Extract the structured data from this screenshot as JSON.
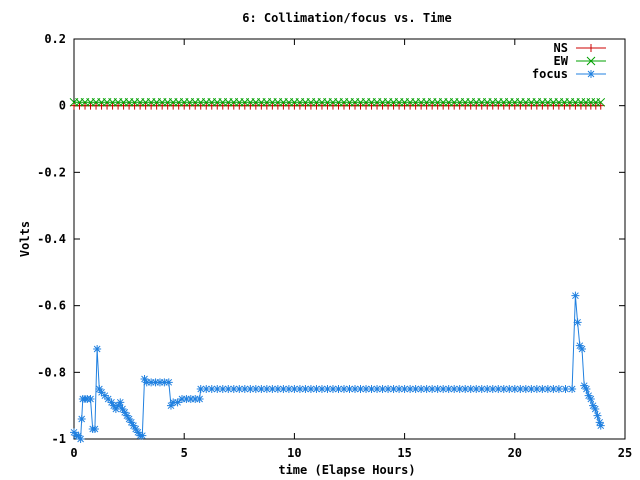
{
  "chart_data": {
    "type": "line",
    "title": "6: Collimation/focus vs. Time",
    "xlabel": "time (Elapse Hours)",
    "ylabel": "Volts",
    "xlim": [
      0,
      25
    ],
    "ylim": [
      -1,
      0.2
    ],
    "xticks": [
      0,
      5,
      10,
      15,
      20,
      25
    ],
    "xtick_labels": [
      "0",
      "5",
      "10",
      "15",
      "20",
      "25"
    ],
    "yticks": [
      0.2,
      0,
      -0.2,
      -0.4,
      -0.6,
      -0.8,
      -1
    ],
    "ytick_labels": [
      "0.2",
      "0",
      "-0.2",
      "-0.4",
      "-0.6",
      "-0.8",
      "-1"
    ],
    "grid": false,
    "legend_position": "top-right",
    "series": [
      {
        "name": "NS",
        "color": "#cc0000",
        "marker": "plus",
        "points": [
          [
            0,
            0
          ],
          [
            0.5,
            0
          ],
          [
            1,
            0
          ],
          [
            2,
            0
          ],
          [
            3,
            0
          ],
          [
            4,
            0
          ],
          [
            5,
            0
          ],
          [
            6,
            0
          ],
          [
            8,
            0
          ],
          [
            10,
            0
          ],
          [
            12,
            0
          ],
          [
            14,
            0
          ],
          [
            16,
            0
          ],
          [
            18,
            0
          ],
          [
            20,
            0
          ],
          [
            22,
            0
          ],
          [
            23,
            0
          ],
          [
            23.9,
            0
          ]
        ]
      },
      {
        "name": "EW",
        "color": "#00a000",
        "marker": "cross",
        "points": [
          [
            0,
            0.01
          ],
          [
            0.5,
            0.01
          ],
          [
            1,
            0.01
          ],
          [
            2,
            0.01
          ],
          [
            3,
            0.01
          ],
          [
            4,
            0.01
          ],
          [
            5,
            0.01
          ],
          [
            6,
            0.01
          ],
          [
            8,
            0.01
          ],
          [
            10,
            0.01
          ],
          [
            12,
            0.01
          ],
          [
            14,
            0.01
          ],
          [
            16,
            0.01
          ],
          [
            18,
            0.01
          ],
          [
            20,
            0.01
          ],
          [
            22,
            0.01
          ],
          [
            23,
            0.01
          ],
          [
            23.9,
            0.01
          ]
        ]
      },
      {
        "name": "focus",
        "color": "#2080e0",
        "marker": "star",
        "points": [
          [
            0,
            -0.98
          ],
          [
            0.1,
            -0.99
          ],
          [
            0.2,
            -0.99
          ],
          [
            0.3,
            -1.0
          ],
          [
            0.35,
            -0.94
          ],
          [
            0.4,
            -0.88
          ],
          [
            0.5,
            -0.88
          ],
          [
            0.6,
            -0.88
          ],
          [
            0.75,
            -0.88
          ],
          [
            0.85,
            -0.97
          ],
          [
            0.95,
            -0.97
          ],
          [
            1.05,
            -0.73
          ],
          [
            1.15,
            -0.85
          ],
          [
            1.25,
            -0.86
          ],
          [
            1.4,
            -0.87
          ],
          [
            1.55,
            -0.88
          ],
          [
            1.7,
            -0.89
          ],
          [
            1.8,
            -0.9
          ],
          [
            1.9,
            -0.91
          ],
          [
            2.0,
            -0.9
          ],
          [
            2.1,
            -0.89
          ],
          [
            2.2,
            -0.91
          ],
          [
            2.3,
            -0.92
          ],
          [
            2.4,
            -0.93
          ],
          [
            2.5,
            -0.94
          ],
          [
            2.6,
            -0.95
          ],
          [
            2.7,
            -0.96
          ],
          [
            2.8,
            -0.97
          ],
          [
            2.9,
            -0.98
          ],
          [
            3.0,
            -0.99
          ],
          [
            3.1,
            -0.99
          ],
          [
            3.2,
            -0.82
          ],
          [
            3.3,
            -0.83
          ],
          [
            3.5,
            -0.83
          ],
          [
            3.7,
            -0.83
          ],
          [
            3.9,
            -0.83
          ],
          [
            4.1,
            -0.83
          ],
          [
            4.3,
            -0.83
          ],
          [
            4.4,
            -0.9
          ],
          [
            4.5,
            -0.89
          ],
          [
            4.7,
            -0.89
          ],
          [
            4.9,
            -0.88
          ],
          [
            5.1,
            -0.88
          ],
          [
            5.3,
            -0.88
          ],
          [
            5.5,
            -0.88
          ],
          [
            5.7,
            -0.88
          ],
          [
            5.75,
            -0.85
          ],
          [
            6,
            -0.85
          ],
          [
            7,
            -0.85
          ],
          [
            8,
            -0.85
          ],
          [
            9,
            -0.85
          ],
          [
            10,
            -0.85
          ],
          [
            11,
            -0.85
          ],
          [
            12,
            -0.85
          ],
          [
            13,
            -0.85
          ],
          [
            14,
            -0.85
          ],
          [
            15,
            -0.85
          ],
          [
            16,
            -0.85
          ],
          [
            17,
            -0.85
          ],
          [
            18,
            -0.85
          ],
          [
            19,
            -0.85
          ],
          [
            20,
            -0.85
          ],
          [
            21,
            -0.85
          ],
          [
            22,
            -0.85
          ],
          [
            22.6,
            -0.85
          ],
          [
            22.75,
            -0.57
          ],
          [
            22.85,
            -0.65
          ],
          [
            22.95,
            -0.72
          ],
          [
            23.05,
            -0.73
          ],
          [
            23.15,
            -0.84
          ],
          [
            23.25,
            -0.85
          ],
          [
            23.35,
            -0.87
          ],
          [
            23.45,
            -0.88
          ],
          [
            23.55,
            -0.9
          ],
          [
            23.65,
            -0.91
          ],
          [
            23.75,
            -0.93
          ],
          [
            23.85,
            -0.95
          ],
          [
            23.9,
            -0.96
          ]
        ]
      }
    ]
  }
}
